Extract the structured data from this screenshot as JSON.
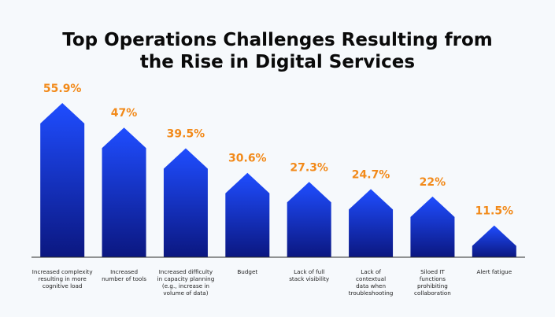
{
  "chart_data": {
    "type": "bar",
    "title_lines": [
      "Top Operations Challenges Resulting from",
      "the Rise in Digital Services"
    ],
    "categories": [
      "Increased complexity resulting in more cognitive load",
      "Increased number of tools",
      "Increased difficulty in capacity planning (e.g., increase in volume of data)",
      "Budget",
      "Lack of full stack visibility",
      "Lack of contextual data when troubleshooting",
      "Siloed IT functions prohibiting collaboration",
      "Alert fatigue"
    ],
    "category_label_lines": [
      [
        "Increased complexity",
        "resulting in more",
        "cognitive load"
      ],
      [
        "Increased",
        "number of tools"
      ],
      [
        "Increased difficulty",
        "in capacity planning",
        "(e.g., increase in",
        "volume of data)"
      ],
      [
        "Budget"
      ],
      [
        "Lack of full",
        "stack visibility"
      ],
      [
        "Lack of",
        "contextual",
        "data when",
        "troubleshooting"
      ],
      [
        "Siloed IT",
        "functions",
        "prohibiting",
        "collaboration"
      ],
      [
        "Alert fatigue"
      ]
    ],
    "values": [
      55.9,
      47,
      39.5,
      30.6,
      27.3,
      24.7,
      22,
      11.5
    ],
    "value_labels": [
      "55.9%",
      "47%",
      "39.5%",
      "30.6%",
      "27.3%",
      "24.7%",
      "22%",
      "11.5%"
    ],
    "unit": "%",
    "ylim": [
      0,
      55.9
    ],
    "grid": false,
    "legend": "none",
    "colors": {
      "bar_top": "#1f4dff",
      "bar_bottom": "#0b1780",
      "value_label": "#f28a1a",
      "title": "#0a0a0a",
      "baseline": "#2a2a2a",
      "background": "#f6f9fc"
    }
  }
}
